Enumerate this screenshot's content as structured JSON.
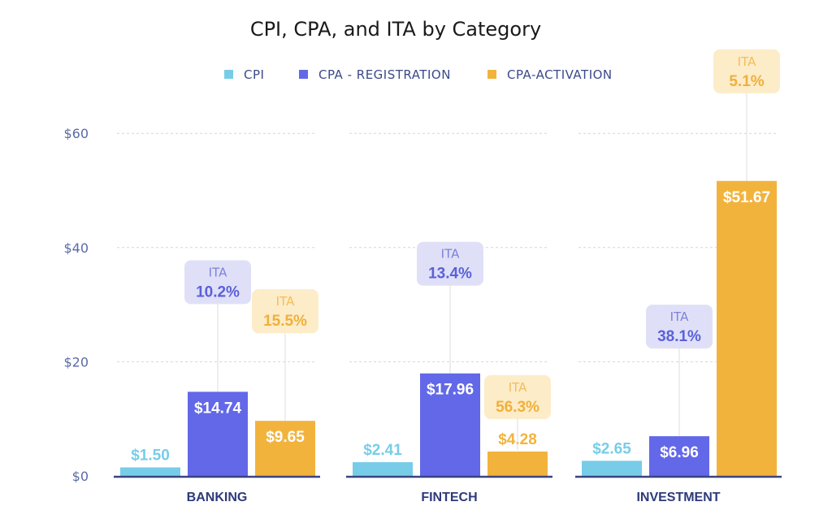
{
  "chart_data": {
    "type": "bar",
    "title": "CPI, CPA, and ITA by Category",
    "categories": [
      "BANKING",
      "FINTECH",
      "INVESTMENT"
    ],
    "series": [
      {
        "name": "CPI",
        "color": "#77cde8",
        "values": [
          1.5,
          2.41,
          2.65
        ],
        "labels": [
          "$1.50",
          "$2.41",
          "$2.65"
        ]
      },
      {
        "name": "CPA - REGISTRATION",
        "color": "#6268e8",
        "values": [
          14.74,
          17.96,
          6.96
        ],
        "labels": [
          "$14.74",
          "$17.96",
          "$6.96"
        ]
      },
      {
        "name": "CPA-ACTIVATION",
        "color": "#f2b33d",
        "values": [
          9.65,
          4.28,
          51.67
        ],
        "labels": [
          "$9.65",
          "$4.28",
          "$51.67"
        ]
      }
    ],
    "ita": {
      "CPA - REGISTRATION": [
        "10.2%",
        "13.4%",
        "38.1%"
      ],
      "CPA-ACTIVATION": [
        "15.5%",
        "56.3%",
        "5.1%"
      ]
    },
    "ita_label": "ITA",
    "ylim": [
      0,
      60
    ],
    "yticks": [
      0,
      20,
      40,
      60
    ],
    "ytick_labels": [
      "$0",
      "$20",
      "$40",
      "$60"
    ],
    "grid": true,
    "legend_position": "top"
  }
}
